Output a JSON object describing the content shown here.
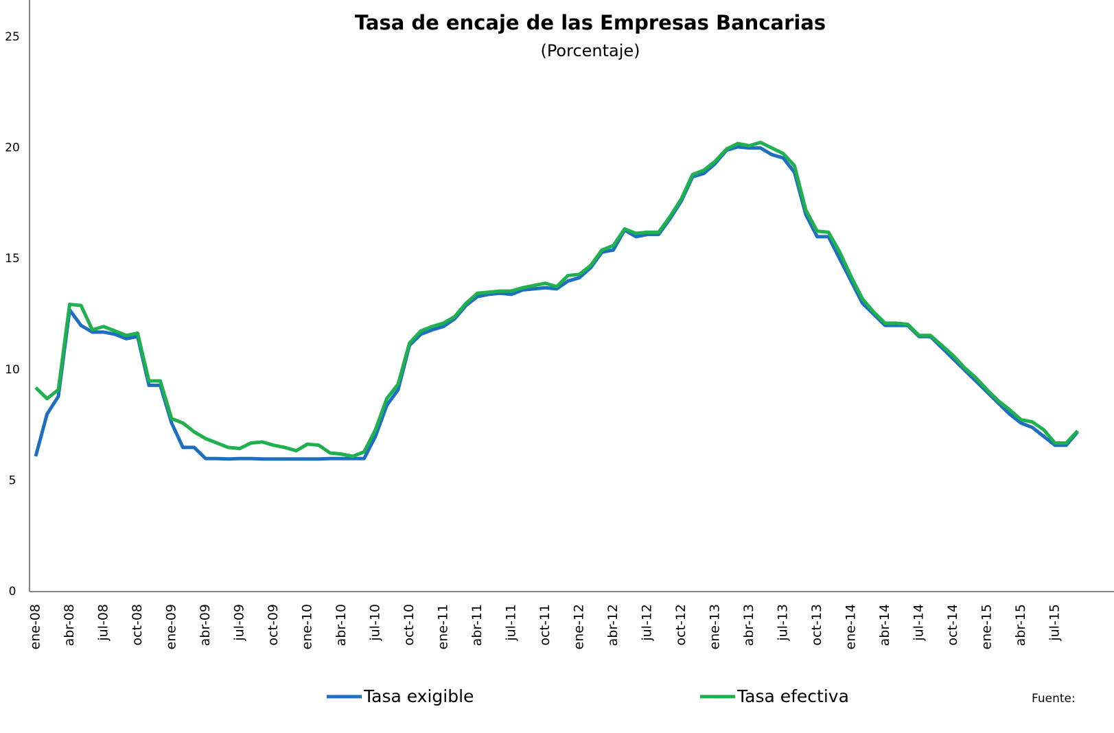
{
  "chart_data": {
    "type": "line",
    "title": "Tasa de encaje de las Empresas Bancarias",
    "subtitle": "(Porcentaje)",
    "source": "Fuente:",
    "categories": [
      "ene-08",
      null,
      null,
      "abr-08",
      null,
      null,
      "jul-08",
      null,
      null,
      "oct-08",
      null,
      null,
      "ene-09",
      null,
      null,
      "abr-09",
      null,
      null,
      "jul-09",
      null,
      null,
      "oct-09",
      null,
      null,
      "ene-10",
      null,
      null,
      "abr-10",
      null,
      null,
      "jul-10",
      null,
      null,
      "oct-10",
      null,
      null,
      "ene-11",
      null,
      null,
      "abr-11",
      null,
      null,
      "jul-11",
      null,
      null,
      "oct-11",
      null,
      null,
      "ene-12",
      null,
      null,
      "abr-12",
      null,
      null,
      "jul-12",
      null,
      null,
      "oct-12",
      null,
      null,
      "ene-13",
      null,
      null,
      "abr-13",
      null,
      null,
      "jul-13",
      null,
      null,
      "oct-13",
      null,
      null,
      "ene-14",
      null,
      null,
      "abr-14",
      null,
      null,
      "jul-14",
      null,
      null,
      "oct-14",
      null,
      null,
      "ene-15",
      null,
      null,
      "abr-15",
      null,
      null,
      "jul-15",
      null,
      null
    ],
    "series": [
      {
        "name": "Tasa exigible",
        "color": "#1f6fc0",
        "values": [
          6.1,
          8.0,
          8.8,
          12.7,
          12.0,
          11.7,
          11.7,
          11.6,
          11.4,
          11.5,
          9.3,
          9.3,
          7.6,
          6.5,
          6.5,
          6.0,
          6.0,
          5.98,
          6.0,
          6.0,
          5.98,
          5.98,
          5.98,
          5.98,
          5.98,
          5.98,
          6.0,
          6.0,
          6.0,
          6.0,
          7.0,
          8.4,
          9.1,
          11.1,
          11.6,
          11.8,
          11.95,
          12.3,
          12.9,
          13.3,
          13.4,
          13.45,
          13.4,
          13.6,
          13.65,
          13.7,
          13.65,
          14.0,
          14.15,
          14.6,
          15.3,
          15.4,
          16.3,
          16.0,
          16.1,
          16.1,
          16.8,
          17.6,
          18.7,
          18.85,
          19.3,
          19.9,
          20.05,
          20.0,
          20.0,
          19.7,
          19.55,
          18.9,
          17.0,
          16.0,
          16.0,
          15.0,
          14.0,
          13.0,
          12.5,
          12.0,
          12.0,
          12.0,
          11.5,
          11.5,
          11.0,
          10.5,
          10.0,
          9.5,
          9.0,
          8.5,
          8.0,
          7.6,
          7.4,
          7.0,
          6.6,
          6.6,
          7.2
        ]
      },
      {
        "name": "Tasa efectiva",
        "color": "#1fb04f",
        "values": [
          9.2,
          8.7,
          9.1,
          12.95,
          12.9,
          11.8,
          11.95,
          11.75,
          11.55,
          11.65,
          9.5,
          9.5,
          7.8,
          7.6,
          7.2,
          6.9,
          6.7,
          6.5,
          6.45,
          6.7,
          6.75,
          6.6,
          6.5,
          6.35,
          6.65,
          6.6,
          6.25,
          6.2,
          6.1,
          6.3,
          7.3,
          8.7,
          9.35,
          11.2,
          11.75,
          11.95,
          12.1,
          12.4,
          13.0,
          13.45,
          13.5,
          13.55,
          13.55,
          13.7,
          13.8,
          13.9,
          13.75,
          14.25,
          14.3,
          14.7,
          15.4,
          15.6,
          16.35,
          16.15,
          16.2,
          16.2,
          16.9,
          17.7,
          18.8,
          19.0,
          19.4,
          19.95,
          20.2,
          20.1,
          20.25,
          20.0,
          19.75,
          19.2,
          17.2,
          16.25,
          16.2,
          15.3,
          14.2,
          13.2,
          12.6,
          12.1,
          12.1,
          12.05,
          11.55,
          11.55,
          11.1,
          10.65,
          10.1,
          9.65,
          9.1,
          8.6,
          8.2,
          7.75,
          7.65,
          7.3,
          6.7,
          6.7,
          7.25
        ]
      }
    ],
    "ylim": [
      0,
      25
    ],
    "yticks": [
      0,
      5,
      10,
      15,
      20,
      25
    ],
    "grid": false
  }
}
